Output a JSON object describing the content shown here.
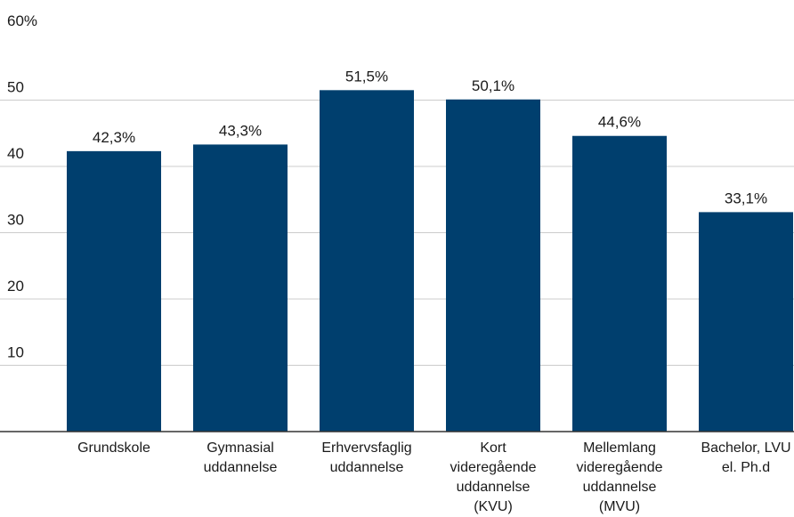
{
  "chart_data": {
    "type": "bar",
    "categories": [
      [
        "Grundskole"
      ],
      [
        "Gymnasial",
        "uddannelse"
      ],
      [
        "Erhvervsfaglig",
        "uddannelse"
      ],
      [
        "Kort",
        "videregående",
        "uddannelse",
        "(KVU)"
      ],
      [
        "Mellemlang",
        "videregående",
        "uddannelse",
        "(MVU)"
      ],
      [
        "Bachelor, LVU",
        "el. Ph.d"
      ]
    ],
    "values": [
      42.3,
      43.3,
      51.5,
      50.1,
      44.6,
      33.1
    ],
    "data_labels": [
      "42,3%",
      "43,3%",
      "51,5%",
      "50,1%",
      "44,6%",
      "33,1%"
    ],
    "ylim": [
      0,
      60
    ],
    "yticks": [
      10,
      20,
      30,
      40,
      50,
      60
    ],
    "ytick_labels": [
      "10",
      "20",
      "30",
      "40",
      "50",
      "60%"
    ],
    "grid": true,
    "colors": {
      "bar": "#003f6e",
      "grid": "#cccccc",
      "axis": "#333333"
    }
  }
}
